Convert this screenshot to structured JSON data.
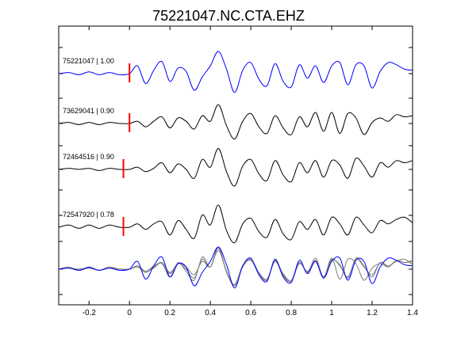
{
  "chart_data": {
    "type": "line",
    "title": "75221047.NC.CTA.EHZ",
    "xlabel": "",
    "ylabel": "",
    "xlim": [
      -0.35,
      1.4
    ],
    "x_ticks": [
      -0.2,
      0,
      0.2,
      0.4,
      0.6,
      0.8,
      1,
      1.2,
      1.4
    ],
    "x_tick_labels": [
      "-0.2",
      "0",
      "0.2",
      "0.4",
      "0.6",
      "0.8",
      "1",
      "1.2",
      "1.4"
    ],
    "grid": false,
    "traces": [
      {
        "label": "75221047 | 1.00",
        "color": "#0000ff",
        "pick_time": 0.0,
        "baseline": 4,
        "x": [
          -0.35,
          -0.3,
          -0.25,
          -0.2,
          -0.15,
          -0.1,
          -0.05,
          0.0,
          0.04,
          0.08,
          0.12,
          0.16,
          0.2,
          0.24,
          0.28,
          0.32,
          0.36,
          0.4,
          0.44,
          0.48,
          0.52,
          0.56,
          0.6,
          0.64,
          0.68,
          0.72,
          0.76,
          0.8,
          0.84,
          0.88,
          0.92,
          0.96,
          1.0,
          1.04,
          1.08,
          1.12,
          1.16,
          1.2,
          1.24,
          1.28,
          1.32,
          1.36,
          1.4
        ],
        "y": [
          0.0,
          0.05,
          -0.05,
          0.08,
          -0.05,
          0.05,
          -0.05,
          0.0,
          0.35,
          -0.45,
          0.15,
          0.55,
          -0.35,
          0.25,
          0.1,
          -0.75,
          -0.15,
          0.35,
          1.0,
          0.2,
          -0.85,
          0.15,
          0.5,
          -0.25,
          -0.55,
          0.45,
          -0.35,
          -0.6,
          0.4,
          -0.2,
          0.35,
          -0.4,
          0.35,
          0.5,
          -0.5,
          0.4,
          0.35,
          -0.65,
          0.1,
          0.5,
          0.4,
          0.2,
          0.15
        ]
      },
      {
        "label": "73629041 | 0.90",
        "color": "#000000",
        "pick_time": 0.0,
        "baseline": 3,
        "x": [
          -0.35,
          -0.3,
          -0.25,
          -0.2,
          -0.15,
          -0.1,
          -0.05,
          0.0,
          0.04,
          0.08,
          0.12,
          0.16,
          0.2,
          0.24,
          0.28,
          0.32,
          0.36,
          0.4,
          0.44,
          0.48,
          0.52,
          0.56,
          0.6,
          0.64,
          0.68,
          0.72,
          0.76,
          0.8,
          0.84,
          0.88,
          0.92,
          0.96,
          1.0,
          1.04,
          1.08,
          1.12,
          1.16,
          1.2,
          1.24,
          1.28,
          1.32,
          1.36,
          1.4
        ],
        "y": [
          0.0,
          0.05,
          -0.05,
          0.05,
          -0.05,
          0.05,
          0.0,
          0.0,
          0.1,
          -0.15,
          0.1,
          0.3,
          -0.2,
          0.25,
          0.1,
          -0.25,
          0.35,
          0.1,
          0.85,
          -0.1,
          -0.7,
          0.1,
          0.45,
          -0.15,
          -0.45,
          0.35,
          -0.2,
          -0.5,
          0.3,
          -0.15,
          0.5,
          -0.35,
          0.5,
          -0.45,
          0.45,
          0.25,
          -0.5,
          0.05,
          0.25,
          0.1,
          0.4,
          0.3,
          0.35
        ]
      },
      {
        "label": "72464516 | 0.90",
        "color": "#000000",
        "pick_time": -0.03,
        "baseline": 2,
        "x": [
          -0.35,
          -0.3,
          -0.25,
          -0.2,
          -0.15,
          -0.1,
          -0.05,
          0.0,
          0.04,
          0.08,
          0.12,
          0.16,
          0.2,
          0.24,
          0.28,
          0.32,
          0.36,
          0.4,
          0.44,
          0.48,
          0.52,
          0.56,
          0.6,
          0.64,
          0.68,
          0.72,
          0.76,
          0.8,
          0.84,
          0.88,
          0.92,
          0.96,
          1.0,
          1.04,
          1.08,
          1.12,
          1.16,
          1.2,
          1.24,
          1.28,
          1.32,
          1.36,
          1.4
        ],
        "y": [
          0.0,
          0.05,
          0.0,
          0.05,
          -0.05,
          0.05,
          0.0,
          0.0,
          0.1,
          -0.1,
          0.05,
          0.3,
          -0.15,
          0.25,
          0.0,
          -0.4,
          0.45,
          0.1,
          0.95,
          -0.1,
          -0.75,
          0.15,
          0.45,
          -0.2,
          -0.5,
          0.4,
          -0.25,
          -0.55,
          0.3,
          -0.15,
          0.4,
          -0.35,
          0.4,
          0.2,
          -0.4,
          0.5,
          0.15,
          -0.35,
          0.3,
          0.1,
          0.4,
          0.3,
          0.4
        ]
      },
      {
        "label": "72547920 | 0.78",
        "color": "#000000",
        "pick_time": -0.03,
        "baseline": 1,
        "x": [
          -0.35,
          -0.3,
          -0.25,
          -0.2,
          -0.15,
          -0.1,
          -0.05,
          0.0,
          0.04,
          0.08,
          0.12,
          0.16,
          0.2,
          0.24,
          0.28,
          0.32,
          0.36,
          0.4,
          0.44,
          0.48,
          0.52,
          0.56,
          0.6,
          0.64,
          0.68,
          0.72,
          0.76,
          0.8,
          0.84,
          0.88,
          0.92,
          0.96,
          1.0,
          1.04,
          1.08,
          1.12,
          1.16,
          1.2,
          1.24,
          1.28,
          1.32,
          1.36,
          1.4
        ],
        "y": [
          0.0,
          0.1,
          -0.05,
          0.1,
          -0.05,
          0.1,
          0.0,
          0.0,
          0.15,
          -0.1,
          0.15,
          0.25,
          -0.35,
          0.3,
          -0.1,
          -0.5,
          0.55,
          0.1,
          1.0,
          -0.15,
          -0.7,
          0.15,
          0.4,
          -0.2,
          -0.45,
          0.35,
          -0.3,
          -0.55,
          0.25,
          -0.1,
          0.35,
          -0.35,
          0.45,
          0.15,
          -0.35,
          0.45,
          0.1,
          -0.25,
          0.3,
          0.15,
          0.35,
          0.45,
          0.2
        ]
      }
    ],
    "stack": {
      "baseline": 0,
      "overlay_of": [
        "75221047 | 1.00",
        "73629041 | 0.90",
        "72464516 | 0.90",
        "72547920 | 0.78"
      ],
      "colors": [
        "#0000ff",
        "#7f7f7f",
        "#7f7f7f",
        "#7f7f7f"
      ]
    },
    "pick_marker_color": "#ff0000"
  }
}
